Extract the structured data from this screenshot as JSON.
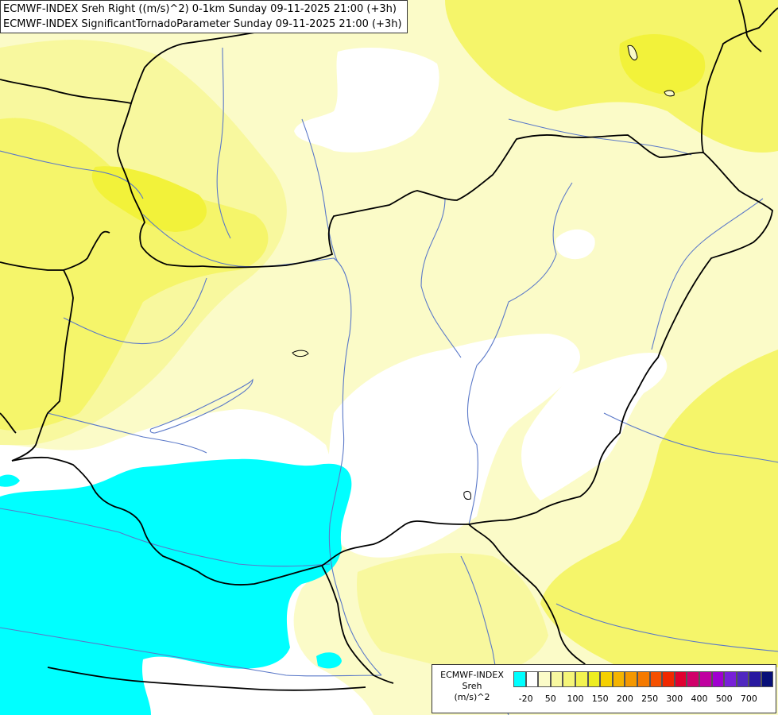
{
  "title": {
    "line1": "ECMWF-INDEX Sreh Right ((m/s)^2) 0-1km Sunday 09-11-2025 21:00 (+3h)",
    "line2": "ECMWF-INDEX SignificantTornadoParameter Sunday 09-11-2025 21:00 (+3h)"
  },
  "legend": {
    "line1": "ECMWF-INDEX",
    "line2": "Sreh",
    "line3": "(m/s)^2",
    "colors": [
      "#00ffff",
      "#ffffff",
      "#fbfbc8",
      "#f8f8a0",
      "#f5f578",
      "#f2f250",
      "#eded20",
      "#f5d000",
      "#f5b400",
      "#f59800",
      "#f57a00",
      "#f55000",
      "#f02800",
      "#e00030",
      "#d0006a",
      "#c000a0",
      "#a000d0",
      "#7820d8",
      "#5028c0",
      "#2818a0",
      "#081078"
    ],
    "tick_labels": [
      "-20",
      "50",
      "100",
      "150",
      "200",
      "250",
      "300",
      "400",
      "500",
      "700"
    ]
  },
  "map": {
    "colors": {
      "background": "#fbfbc8",
      "light_yellow": "#f8f89e",
      "yellow": "#f5f56a",
      "bright_yellow": "#f2f23a",
      "cyan": "#00ffff",
      "white": "#ffffff",
      "border": "#000000",
      "river": "#5a78c8"
    }
  }
}
